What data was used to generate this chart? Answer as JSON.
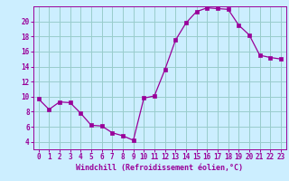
{
  "hours": [
    0,
    1,
    2,
    3,
    4,
    5,
    6,
    7,
    8,
    9,
    10,
    11,
    12,
    13,
    14,
    15,
    16,
    17,
    18,
    19,
    20,
    21,
    22,
    23
  ],
  "values": [
    9.7,
    8.3,
    9.3,
    9.2,
    7.8,
    6.2,
    6.1,
    5.2,
    4.8,
    4.2,
    9.8,
    10.1,
    13.6,
    17.5,
    19.8,
    21.3,
    21.8,
    21.7,
    21.6,
    19.5,
    18.2,
    15.5,
    15.2,
    15.0
  ],
  "line_color": "#990099",
  "marker": "s",
  "marker_size": 2.2,
  "bg_color": "#cceeff",
  "grid_color": "#99cccc",
  "xlabel": "Windchill (Refroidissement éolien,°C)",
  "xlim": [
    -0.5,
    23.5
  ],
  "ylim": [
    3,
    22
  ],
  "yticks": [
    4,
    6,
    8,
    10,
    12,
    14,
    16,
    18,
    20
  ],
  "xticks": [
    0,
    1,
    2,
    3,
    4,
    5,
    6,
    7,
    8,
    9,
    10,
    11,
    12,
    13,
    14,
    15,
    16,
    17,
    18,
    19,
    20,
    21,
    22,
    23
  ],
  "tick_color": "#990099",
  "label_color": "#990099",
  "tick_fontsize": 5.5,
  "xlabel_fontsize": 6.0
}
